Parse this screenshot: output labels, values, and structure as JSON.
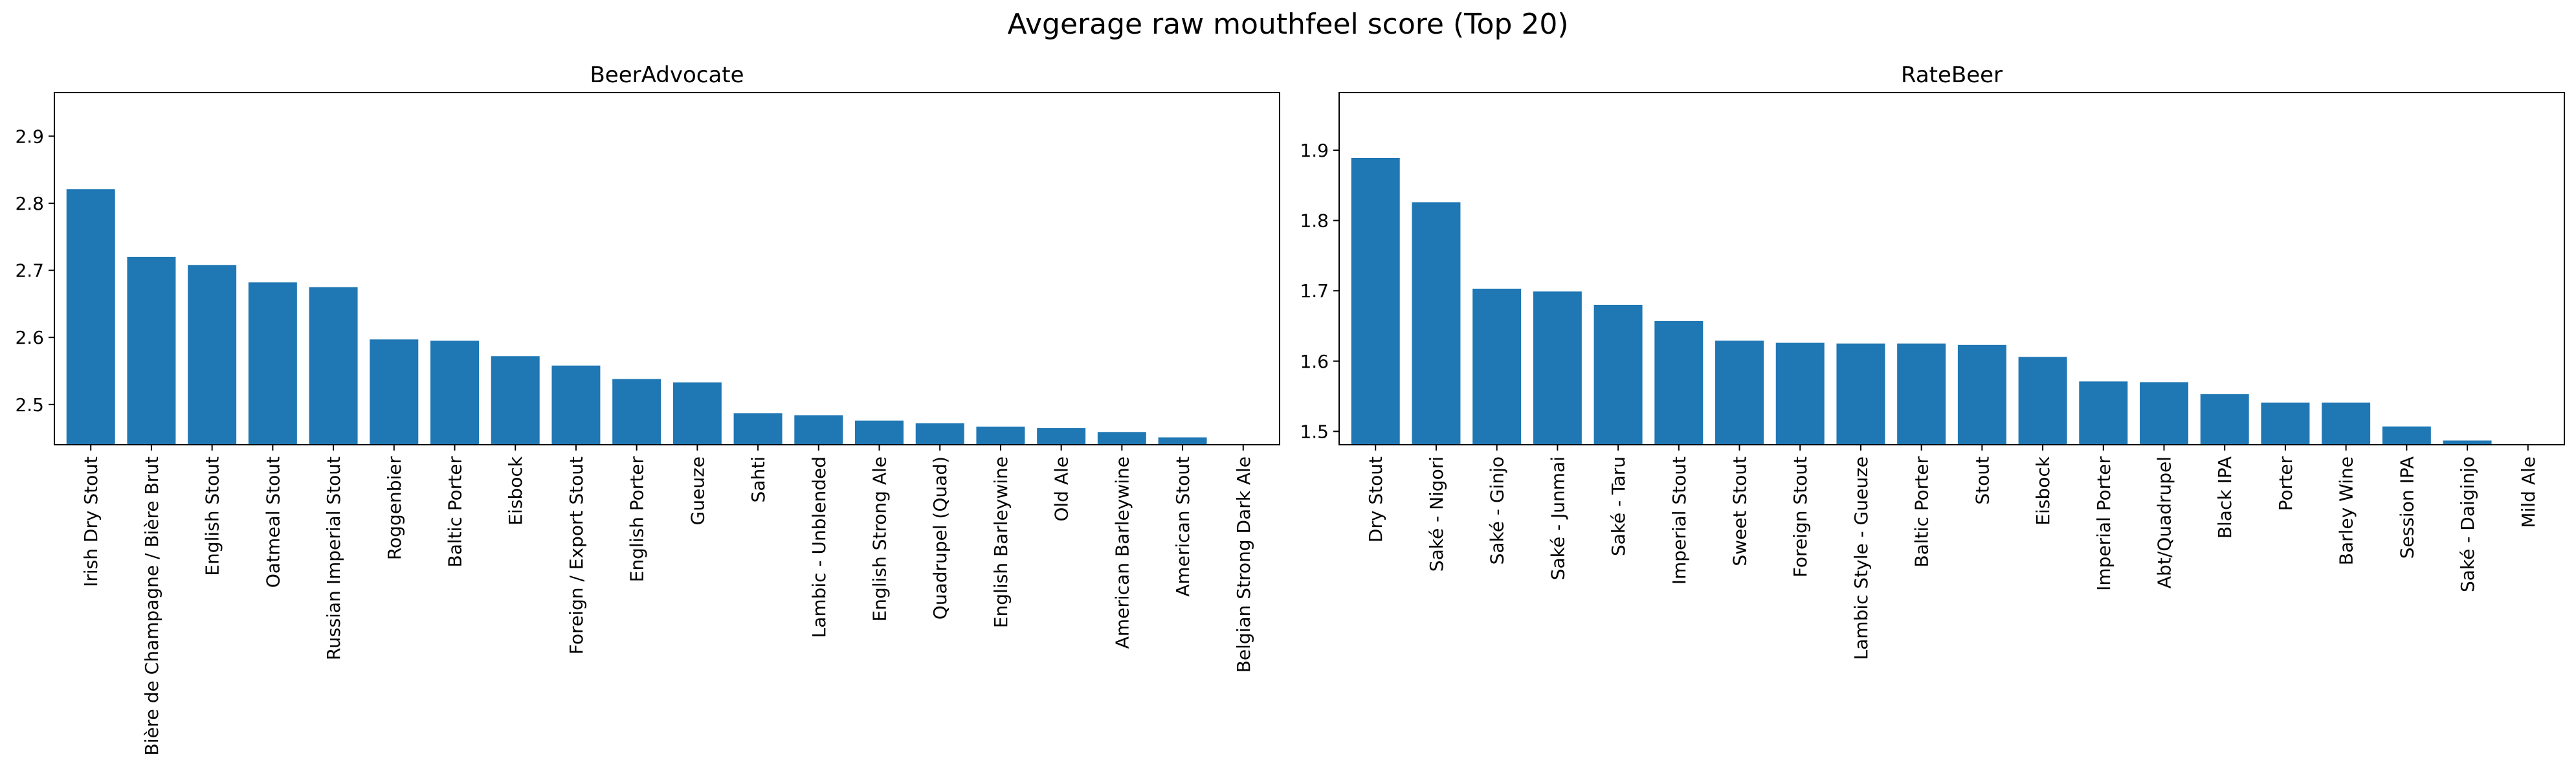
{
  "figure": {
    "title": "Avgerage raw mouthfeel score (Top 20)"
  },
  "chart_data": [
    {
      "type": "bar",
      "title": "BeerAdvocate",
      "xlabel": "",
      "ylabel": "",
      "color": "#1f77b4",
      "ylim": [
        2.44,
        2.965
      ],
      "yticks": [
        2.5,
        2.6,
        2.7,
        2.8,
        2.9
      ],
      "yticklabels": [
        "2.5",
        "2.6",
        "2.7",
        "2.8",
        "2.9"
      ],
      "categories": [
        "Irish Dry Stout",
        "Bière de Champagne / Bière Brut",
        "English Stout",
        "Oatmeal Stout",
        "Russian Imperial Stout",
        "Roggenbier",
        "Baltic Porter",
        "Eisbock",
        "Foreign / Export Stout",
        "English Porter",
        "Gueuze",
        "Sahti",
        "Lambic - Unblended",
        "English Strong Ale",
        "Quadrupel (Quad)",
        "English Barleywine",
        "Old Ale",
        "American Barleywine",
        "American Stout",
        "Belgian Strong Dark Ale"
      ],
      "values": [
        2.821,
        2.72,
        2.708,
        2.682,
        2.675,
        2.597,
        2.595,
        2.572,
        2.558,
        2.538,
        2.533,
        2.487,
        2.484,
        2.476,
        2.472,
        2.467,
        2.465,
        2.459,
        2.451,
        2.44
      ]
    },
    {
      "type": "bar",
      "title": "RateBeer",
      "xlabel": "",
      "ylabel": "",
      "color": "#1f77b4",
      "ylim": [
        1.481,
        1.982
      ],
      "yticks": [
        1.5,
        1.6,
        1.7,
        1.8,
        1.9
      ],
      "yticklabels": [
        "1.5",
        "1.6",
        "1.7",
        "1.8",
        "1.9"
      ],
      "categories": [
        "Dry Stout",
        "Saké - Nigori",
        "Saké - Ginjo",
        "Saké - Junmai",
        "Saké - Taru",
        "Imperial Stout",
        "Sweet Stout",
        "Foreign Stout",
        "Lambic Style - Gueuze",
        "Baltic Porter",
        "Stout",
        "Eisbock",
        "Imperial Porter",
        "Abt/Quadrupel",
        "Black IPA",
        "Porter",
        "Barley Wine",
        "Session IPA",
        "Saké - Daiginjo",
        "Mild Ale"
      ],
      "values": [
        1.889,
        1.826,
        1.703,
        1.699,
        1.68,
        1.657,
        1.629,
        1.626,
        1.625,
        1.625,
        1.623,
        1.606,
        1.571,
        1.57,
        1.553,
        1.541,
        1.541,
        1.507,
        1.487,
        1.482
      ]
    }
  ]
}
